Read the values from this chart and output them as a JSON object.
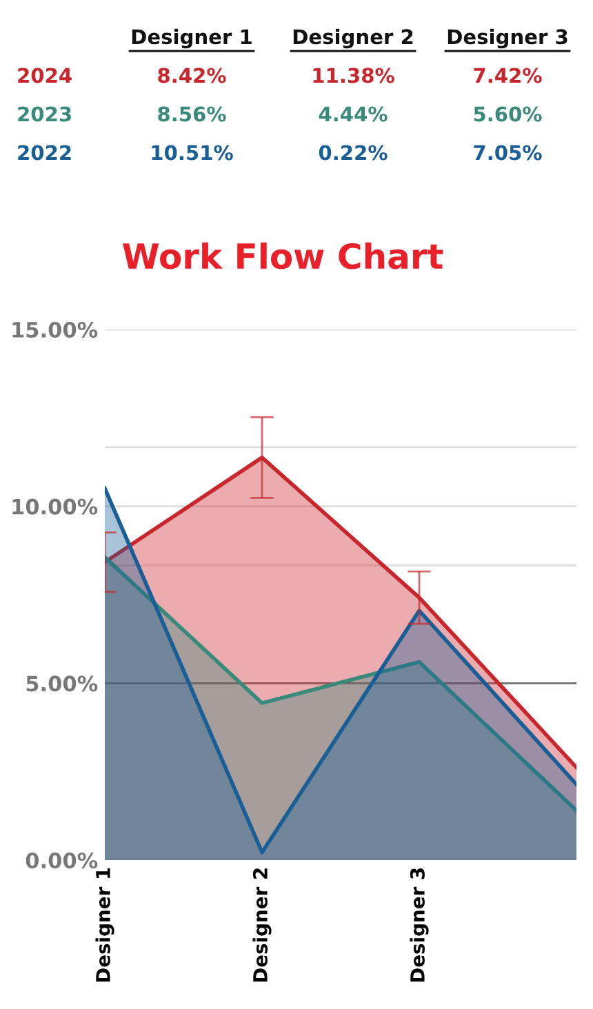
{
  "chart_data": {
    "type": "area",
    "title": "Work Flow Chart",
    "categories": [
      "Designer 1",
      "Designer 2",
      "Designer 3",
      null
    ],
    "series": [
      {
        "name": "2024",
        "color": "#c8262c",
        "values": [
          8.42,
          11.38,
          7.42,
          2.62
        ],
        "errors": [
          0.84,
          1.14,
          0.74,
          null
        ]
      },
      {
        "name": "2023",
        "color": "#3a8a7c",
        "values": [
          8.56,
          4.44,
          5.6,
          1.4
        ]
      },
      {
        "name": "2022",
        "color": "#1a5e96",
        "values": [
          10.51,
          0.22,
          7.05,
          2.14
        ]
      }
    ],
    "annotations": [
      "8.42%",
      "11.38%",
      "7.42%",
      "8.56%",
      "4.44%",
      "5.60%",
      "10.51%",
      "0.22%",
      "7.05%"
    ],
    "ylim": [
      0,
      15
    ],
    "yticks": [
      {
        "value": 0,
        "label": "0.00%"
      },
      {
        "value": 5,
        "label": "5.00%"
      },
      {
        "value": 8.33,
        "label": null
      },
      {
        "value": 10,
        "label": "10.00%"
      },
      {
        "value": 11.67,
        "label": null
      },
      {
        "value": 15,
        "label": "15.00%"
      }
    ],
    "ref_lines": [
      {
        "axis": "y",
        "value": 5,
        "color": "#707070"
      }
    ],
    "grid": "y",
    "legend": false,
    "marker": "none",
    "line_style": "solid"
  }
}
